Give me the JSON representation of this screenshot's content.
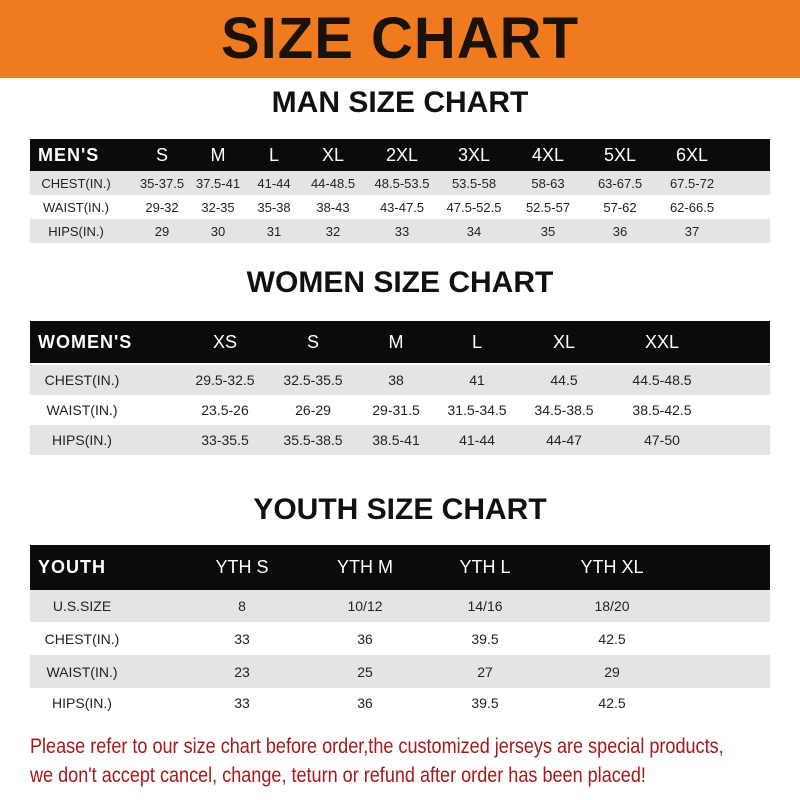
{
  "banner": {
    "title": "SIZE CHART",
    "color": "#ef7a1f"
  },
  "men": {
    "title": "MAN SIZE CHART",
    "header": [
      "MEN'S",
      "S",
      "M",
      "L",
      "XL",
      "2XL",
      "3XL",
      "4XL",
      "5XL",
      "6XL"
    ],
    "rows": [
      [
        "CHEST(IN.)",
        "35-37.5",
        "37.5-41",
        "41-44",
        "44-48.5",
        "48.5-53.5",
        "53.5-58",
        "58-63",
        "63-67.5",
        "67.5-72"
      ],
      [
        "WAIST(IN.)",
        "29-32",
        "32-35",
        "35-38",
        "38-43",
        "43-47.5",
        "47.5-52.5",
        "52.5-57",
        "57-62",
        "62-66.5"
      ],
      [
        "HIPS(IN.)",
        "29",
        "30",
        "31",
        "32",
        "33",
        "34",
        "35",
        "36",
        "37"
      ]
    ]
  },
  "women": {
    "title": "WOMEN SIZE CHART",
    "header": [
      "WOMEN'S",
      "XS",
      "S",
      "M",
      "L",
      "XL",
      "XXL"
    ],
    "rows": [
      [
        "CHEST(IN.)",
        "29.5-32.5",
        "32.5-35.5",
        "38",
        "41",
        "44.5",
        "44.5-48.5"
      ],
      [
        "WAIST(IN.)",
        "23.5-26",
        "26-29",
        "29-31.5",
        "31.5-34.5",
        "34.5-38.5",
        "38.5-42.5"
      ],
      [
        "HIPS(IN.)",
        "33-35.5",
        "35.5-38.5",
        "38.5-41",
        "41-44",
        "44-47",
        "47-50"
      ]
    ]
  },
  "youth": {
    "title": "YOUTH SIZE CHART",
    "header": [
      "YOUTH",
      "YTH S",
      "YTH M",
      "YTH L",
      "YTH XL"
    ],
    "rows": [
      [
        "U.S.SIZE",
        "8",
        "10/12",
        "14/16",
        "18/20"
      ],
      [
        "CHEST(IN.)",
        "33",
        "36",
        "39.5",
        "42.5"
      ],
      [
        "WAIST(IN.)",
        "23",
        "25",
        "27",
        "29"
      ],
      [
        "HIPS(IN.)",
        "33",
        "36",
        "39.5",
        "42.5"
      ]
    ]
  },
  "note": {
    "line1": "Please refer to our size chart before order,the customized jerseys are special products,",
    "line2": "we don't accept cancel, change, teturn or refund after order has been placed!",
    "color": "#a81818"
  }
}
